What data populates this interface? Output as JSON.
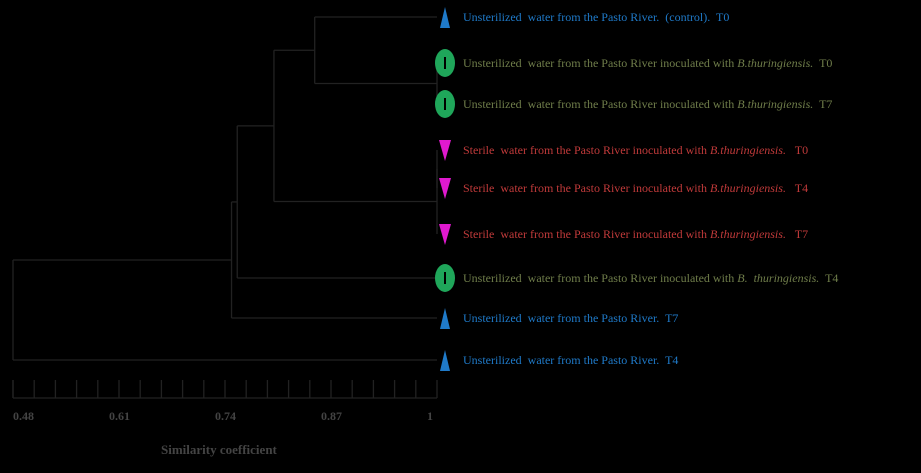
{
  "colors": {
    "background": "#000000",
    "tree_lines": "#222222",
    "blue": "#1f7ac9",
    "green": "#1fa65a",
    "magenta": "#e019cf",
    "green_text": "#6f7d4a",
    "red_text": "#c03a3a"
  },
  "leaves": [
    {
      "marker": "triangle-up",
      "color": "blue",
      "text_color": "blue",
      "pre": "Unsterilized  water from the Pasto River.  (control).  T0",
      "italic": "",
      "post": ""
    },
    {
      "marker": "ellipse",
      "color": "green",
      "text_color": "green_text",
      "pre": "Unsterilized  water from the Pasto River inoculated with ",
      "italic": "B.thuringiensis.",
      "post": "  T0"
    },
    {
      "marker": "ellipse",
      "color": "green",
      "text_color": "green_text",
      "pre": "Unsterilized  water from the Pasto River inoculated with ",
      "italic": "B.thuringiensis.",
      "post": "  T7"
    },
    {
      "marker": "triangle-down",
      "color": "magenta",
      "text_color": "red_text",
      "pre": "Sterile  water from the Pasto River inoculated with ",
      "italic": "B.thuringiensis.",
      "post": "   T0"
    },
    {
      "marker": "triangle-down",
      "color": "magenta",
      "text_color": "red_text",
      "pre": "Sterile  water from the Pasto River inoculated with ",
      "italic": "B.thuringiensis.",
      "post": "   T4"
    },
    {
      "marker": "triangle-down",
      "color": "magenta",
      "text_color": "red_text",
      "pre": "Sterile  water from the Pasto River inoculated with ",
      "italic": "B.thuringiensis.",
      "post": "   T7"
    },
    {
      "marker": "ellipse",
      "color": "green",
      "text_color": "green_text",
      "pre": "Unsterilized  water from the Pasto River inoculated with ",
      "italic": "B.  thuringiensis.",
      "post": "  T4"
    },
    {
      "marker": "triangle-up",
      "color": "blue",
      "text_color": "blue",
      "pre": "Unsterilized  water from the Pasto River.  T7",
      "italic": "",
      "post": ""
    },
    {
      "marker": "triangle-up",
      "color": "blue",
      "text_color": "blue",
      "pre": "Unsterilized  water from the Pasto River.  T4",
      "italic": "",
      "post": ""
    }
  ],
  "axis": {
    "title": "Similarity coefficient",
    "min": 0.48,
    "max": 1.0,
    "minor_step": 0.026,
    "ticks": [
      {
        "value": 0.48,
        "label": "0.48"
      },
      {
        "value": 0.61,
        "label": "0.61"
      },
      {
        "value": 0.74,
        "label": "0.74"
      },
      {
        "value": 0.87,
        "label": "0.87"
      },
      {
        "value": 1.0,
        "label": "1"
      }
    ]
  },
  "clusters": [
    {
      "a": "leaf:1",
      "b": "leaf:2",
      "similarity": 1.0
    },
    {
      "a": "leaf:3",
      "b": "leaf:4",
      "similarity": 1.0
    },
    {
      "a": "node:1",
      "b": "leaf:5",
      "similarity": 1.0
    },
    {
      "a": "leaf:0",
      "b": "node:0",
      "similarity": 0.85
    },
    {
      "a": "node:3",
      "b": "node:2",
      "similarity": 0.8
    },
    {
      "a": "node:4",
      "b": "leaf:6",
      "similarity": 0.755
    },
    {
      "a": "node:5",
      "b": "leaf:7",
      "similarity": 0.748
    },
    {
      "a": "node:6",
      "b": "leaf:8",
      "similarity": 0.48
    }
  ]
}
